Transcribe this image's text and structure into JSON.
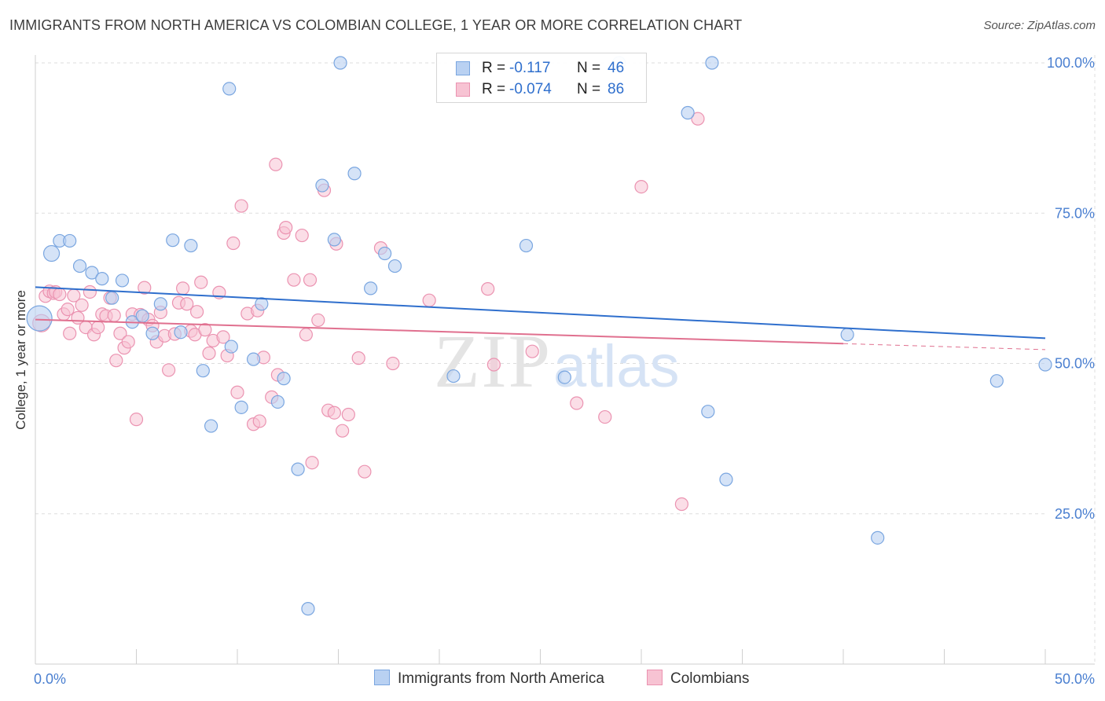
{
  "title": "IMMIGRANTS FROM NORTH AMERICA VS COLOMBIAN COLLEGE, 1 YEAR OR MORE CORRELATION CHART",
  "source": "Source: ZipAtlas.com",
  "watermark": {
    "zip": "ZIP",
    "atlas": "atlas"
  },
  "legend": {
    "rows": [
      {
        "r_label": "R =",
        "r_value": "-0.117",
        "n_label": "N =",
        "n_value": "46"
      },
      {
        "r_label": "R =",
        "r_value": "-0.074",
        "n_label": "N =",
        "n_value": "86"
      }
    ]
  },
  "bottom_legend": {
    "series1": "Immigrants from North America",
    "series2": "Colombians"
  },
  "colors": {
    "blue_fill": "#b9d1f2",
    "blue_stroke": "#7aa6e0",
    "blue_line": "#2f6fcd",
    "pink_fill": "#f7c3d3",
    "pink_stroke": "#eb93b1",
    "pink_line": "#e0708f",
    "tick_text": "#4a7fd0",
    "grid": "#dddddd"
  },
  "chart_data": {
    "type": "scatter",
    "title": "IMMIGRANTS FROM NORTH AMERICA VS COLOMBIAN COLLEGE, 1 YEAR OR MORE CORRELATION CHART",
    "xlabel": "",
    "ylabel": "College, 1 year or more",
    "xlim": [
      0,
      50
    ],
    "ylim": [
      0,
      102
    ],
    "x_tick_labels": [
      "0.0%",
      "50.0%"
    ],
    "y_ticks": [
      25,
      50,
      75,
      100
    ],
    "y_tick_labels": [
      "25.0%",
      "50.0%",
      "75.0%",
      "100.0%"
    ],
    "grid": true,
    "legend_position": "top-center",
    "series": [
      {
        "name": "Immigrants from North America",
        "r": -0.117,
        "n": 46,
        "trend": {
          "x": [
            0,
            50
          ],
          "y": [
            62.7,
            54.2
          ]
        },
        "points": [
          [
            0.2,
            57.5
          ],
          [
            0.8,
            68.3
          ],
          [
            1.2,
            70.4
          ],
          [
            1.7,
            70.4
          ],
          [
            2.2,
            66.2
          ],
          [
            2.8,
            65.1
          ],
          [
            3.3,
            64.1
          ],
          [
            3.8,
            60.9
          ],
          [
            4.3,
            63.8
          ],
          [
            4.8,
            56.9
          ],
          [
            5.3,
            57.9
          ],
          [
            5.8,
            55.0
          ],
          [
            6.2,
            59.9
          ],
          [
            6.8,
            70.5
          ],
          [
            7.2,
            55.2
          ],
          [
            7.7,
            69.6
          ],
          [
            8.3,
            48.8
          ],
          [
            8.7,
            39.6
          ],
          [
            9.6,
            95.7
          ],
          [
            9.7,
            52.8
          ],
          [
            10.2,
            42.7
          ],
          [
            10.8,
            50.7
          ],
          [
            11.2,
            59.9
          ],
          [
            12.0,
            43.6
          ],
          [
            12.3,
            47.5
          ],
          [
            13.0,
            32.4
          ],
          [
            13.5,
            9.2
          ],
          [
            14.2,
            79.6
          ],
          [
            14.8,
            70.6
          ],
          [
            15.1,
            100.0
          ],
          [
            15.8,
            81.6
          ],
          [
            16.6,
            62.5
          ],
          [
            17.3,
            68.3
          ],
          [
            17.8,
            66.2
          ],
          [
            20.7,
            47.9
          ],
          [
            24.3,
            69.6
          ],
          [
            26.2,
            47.7
          ],
          [
            28.9,
            100.0
          ],
          [
            32.3,
            91.7
          ],
          [
            33.3,
            42.0
          ],
          [
            33.5,
            100.0
          ],
          [
            34.2,
            30.7
          ],
          [
            40.2,
            54.8
          ],
          [
            41.7,
            21.0
          ],
          [
            47.6,
            47.1
          ],
          [
            50.0,
            49.8
          ]
        ]
      },
      {
        "name": "Colombians",
        "r": -0.074,
        "n": 86,
        "trend": {
          "x": [
            0,
            40.0
          ],
          "y": [
            57.3,
            53.3
          ]
        },
        "points": [
          [
            0.3,
            56.7
          ],
          [
            0.5,
            61.2
          ],
          [
            0.7,
            62.0
          ],
          [
            0.9,
            61.7
          ],
          [
            1.0,
            61.9
          ],
          [
            1.2,
            61.5
          ],
          [
            1.4,
            58.2
          ],
          [
            1.6,
            59.0
          ],
          [
            1.7,
            55.0
          ],
          [
            1.9,
            61.3
          ],
          [
            2.1,
            57.6
          ],
          [
            2.3,
            59.7
          ],
          [
            2.5,
            56.0
          ],
          [
            2.7,
            61.9
          ],
          [
            2.9,
            54.8
          ],
          [
            3.1,
            56.0
          ],
          [
            3.3,
            58.2
          ],
          [
            3.5,
            57.9
          ],
          [
            3.7,
            60.9
          ],
          [
            3.9,
            58.0
          ],
          [
            4.0,
            50.5
          ],
          [
            4.2,
            55.0
          ],
          [
            4.4,
            52.6
          ],
          [
            4.6,
            53.6
          ],
          [
            4.8,
            58.2
          ],
          [
            5.0,
            40.7
          ],
          [
            5.2,
            58.1
          ],
          [
            5.4,
            62.6
          ],
          [
            5.6,
            57.3
          ],
          [
            5.8,
            56.3
          ],
          [
            6.0,
            53.6
          ],
          [
            6.2,
            58.5
          ],
          [
            6.4,
            54.6
          ],
          [
            6.6,
            48.9
          ],
          [
            6.9,
            54.9
          ],
          [
            7.1,
            60.1
          ],
          [
            7.3,
            62.5
          ],
          [
            7.5,
            59.9
          ],
          [
            7.7,
            55.4
          ],
          [
            7.9,
            54.8
          ],
          [
            8.0,
            58.6
          ],
          [
            8.2,
            63.5
          ],
          [
            8.4,
            55.6
          ],
          [
            8.6,
            51.7
          ],
          [
            8.8,
            53.8
          ],
          [
            9.1,
            61.8
          ],
          [
            9.3,
            54.4
          ],
          [
            9.5,
            51.3
          ],
          [
            9.8,
            70.0
          ],
          [
            10.0,
            45.2
          ],
          [
            10.2,
            76.2
          ],
          [
            10.5,
            58.3
          ],
          [
            10.8,
            39.9
          ],
          [
            11.0,
            58.8
          ],
          [
            11.1,
            40.4
          ],
          [
            11.3,
            51.0
          ],
          [
            11.7,
            44.4
          ],
          [
            11.9,
            83.1
          ],
          [
            12.0,
            48.1
          ],
          [
            12.3,
            71.7
          ],
          [
            12.4,
            72.6
          ],
          [
            12.8,
            63.9
          ],
          [
            13.2,
            71.3
          ],
          [
            13.4,
            54.8
          ],
          [
            13.6,
            63.9
          ],
          [
            13.7,
            33.5
          ],
          [
            14.0,
            57.2
          ],
          [
            14.3,
            78.8
          ],
          [
            14.5,
            42.2
          ],
          [
            14.8,
            41.8
          ],
          [
            14.9,
            69.9
          ],
          [
            15.2,
            38.8
          ],
          [
            15.5,
            41.5
          ],
          [
            16.0,
            50.9
          ],
          [
            16.3,
            32.0
          ],
          [
            17.1,
            69.2
          ],
          [
            17.7,
            50.0
          ],
          [
            19.5,
            60.5
          ],
          [
            22.4,
            62.4
          ],
          [
            22.7,
            49.8
          ],
          [
            24.6,
            52.0
          ],
          [
            26.8,
            43.4
          ],
          [
            28.2,
            41.1
          ],
          [
            30.0,
            79.4
          ],
          [
            32.0,
            26.6
          ],
          [
            32.8,
            90.7
          ]
        ]
      }
    ]
  }
}
